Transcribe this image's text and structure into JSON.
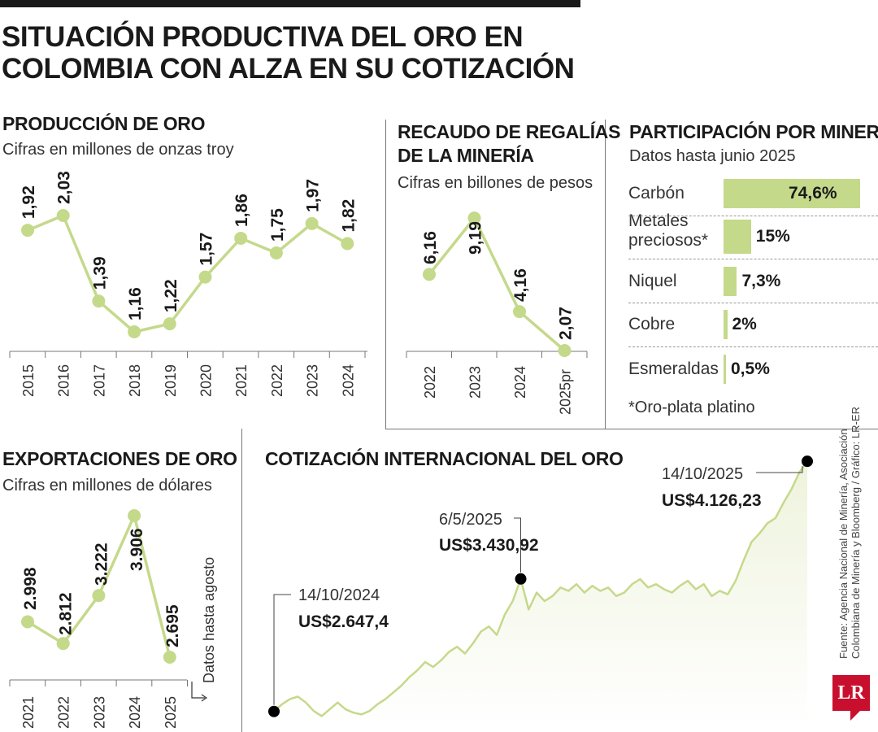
{
  "title": "SITUACIÓN PRODUCTIVA DEL ORO EN COLOMBIA CON ALZA EN SU COTIZACIÓN",
  "source": {
    "line1": "Fuente: Agencia Nacional de Minería, Asociación",
    "line2": "Colombiana de Minería y Bloomberg / Gráfico: LR-ER"
  },
  "logo": "LR",
  "colors": {
    "accent": "#c5d98b",
    "fill": "#eef3dc",
    "marker": "#000000",
    "text": "#1a1a1a"
  },
  "chart_data": [
    {
      "type": "line",
      "title": "PRODUCCIÓN DE ORO",
      "subtitle": "Cifras en millones de onzas troy",
      "categories": [
        "2015",
        "2016",
        "2017",
        "2018",
        "2019",
        "2020",
        "2021",
        "2022",
        "2023",
        "2024"
      ],
      "values": [
        1.92,
        2.03,
        1.39,
        1.16,
        1.22,
        1.57,
        1.86,
        1.75,
        1.97,
        1.82
      ],
      "labels": [
        "1,92",
        "2,03",
        "1,39",
        "1,16",
        "1,22",
        "1,57",
        "1,86",
        "1,75",
        "1,97",
        "1,82"
      ],
      "grid": false
    },
    {
      "type": "line",
      "title_line1": "RECAUDO DE REGALÍAS",
      "title_line2": "DE LA MINERÍA",
      "subtitle": "Cifras en billones de pesos",
      "categories": [
        "2022",
        "2023",
        "2024",
        "2025pr"
      ],
      "values": [
        6.16,
        9.19,
        4.16,
        2.07
      ],
      "labels": [
        "6,16",
        "9,19",
        "4,16",
        "2,07"
      ],
      "grid": false
    },
    {
      "type": "bar",
      "title": "PARTICIPACIÓN POR MINERAL",
      "subtitle": "Datos hasta junio 2025",
      "categories": [
        [
          "Carbón"
        ],
        [
          "Metales",
          "preciosos*"
        ],
        [
          "Niquel"
        ],
        [
          "Cobre"
        ],
        [
          "Esmeraldas"
        ]
      ],
      "values": [
        74.6,
        15,
        7.3,
        2,
        0.5
      ],
      "labels": [
        "74,6%",
        "15%",
        "7,3%",
        "2%",
        "0,5%"
      ],
      "footnote": "*Oro-plata platino"
    },
    {
      "type": "line",
      "title": "EXPORTACIONES DE ORO",
      "subtitle": "Cifras en millones de dólares",
      "categories": [
        "2021",
        "2022",
        "2023",
        "2024",
        "2025"
      ],
      "values": [
        2998,
        2812,
        3222,
        3906,
        2695
      ],
      "labels": [
        "2.998",
        "2.812",
        "3.222",
        "3.906",
        "2.695"
      ],
      "annotation": "Datos hasta agosto"
    },
    {
      "type": "area",
      "title": "COTIZACIÓN INTERNACIONAL DEL ORO",
      "x_range": [
        "14/10/2024",
        "14/10/2025"
      ],
      "y_range": [
        2550,
        4180
      ],
      "series": [
        {
          "values": [
            2647.4,
            2690,
            2720,
            2735,
            2700,
            2650,
            2620,
            2660,
            2700,
            2660,
            2640,
            2630,
            2650,
            2690,
            2720,
            2760,
            2800,
            2850,
            2890,
            2940,
            2910,
            2950,
            3000,
            3030,
            2990,
            3050,
            3120,
            3150,
            3100,
            3220,
            3300,
            3430.92,
            3250,
            3350,
            3300,
            3330,
            3380,
            3360,
            3400,
            3350,
            3390,
            3360,
            3380,
            3330,
            3350,
            3400,
            3430,
            3380,
            3400,
            3370,
            3350,
            3390,
            3420,
            3370,
            3400,
            3330,
            3360,
            3340,
            3420,
            3540,
            3650,
            3700,
            3760,
            3790,
            3880,
            3960,
            4060,
            4126.23
          ]
        }
      ],
      "annotations": [
        {
          "date": "14/10/2024",
          "value_label": "US$2.647,4"
        },
        {
          "date": "6/5/2025",
          "value_label": "US$3.430,92"
        },
        {
          "date": "14/10/2025",
          "value_label": "US$4.126,23"
        }
      ]
    }
  ]
}
